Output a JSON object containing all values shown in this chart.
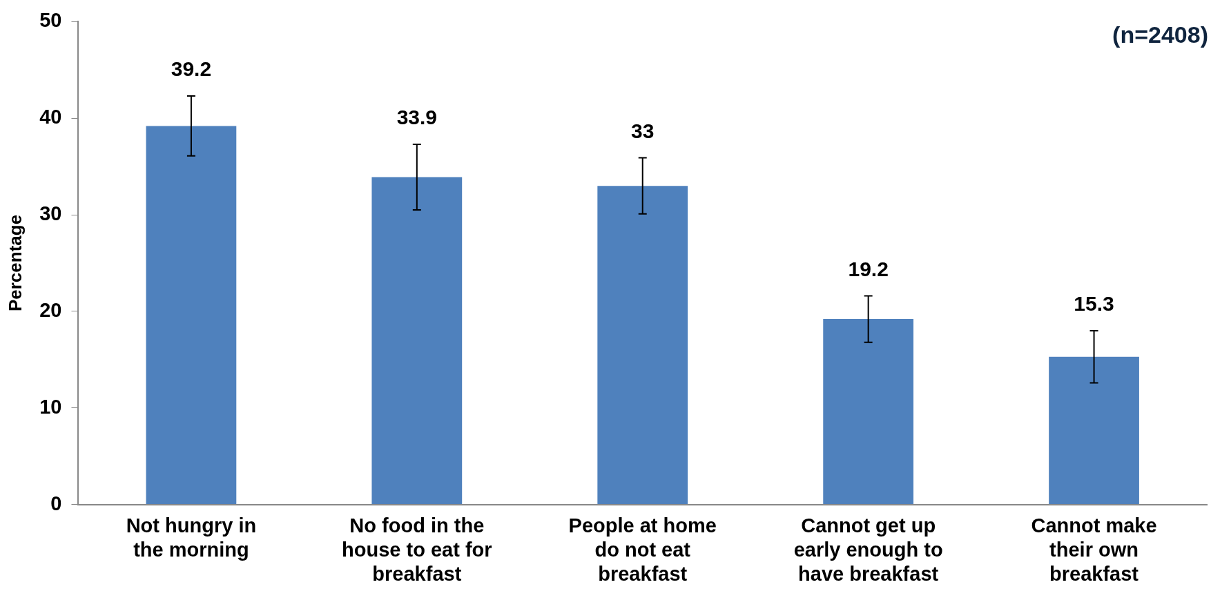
{
  "chart_data": {
    "type": "bar",
    "ylabel": "Percentage",
    "categories": [
      "Not hungry in the morning",
      "No food in the house to eat for breakfast",
      "People at home do not eat breakfast",
      "Cannot get up early enough to have breakfast",
      "Cannot make their own breakfast"
    ],
    "values": [
      39.2,
      33.9,
      33,
      19.2,
      15.3
    ],
    "errors": [
      3.1,
      3.4,
      2.9,
      2.4,
      2.7
    ],
    "color": "#4f81bd",
    "ylim": [
      0,
      50
    ],
    "yticks": [
      0,
      10,
      20,
      30,
      40,
      50
    ],
    "grid": false,
    "legend": false,
    "data_labels": true,
    "annotations": [
      "(n=2408)"
    ]
  }
}
